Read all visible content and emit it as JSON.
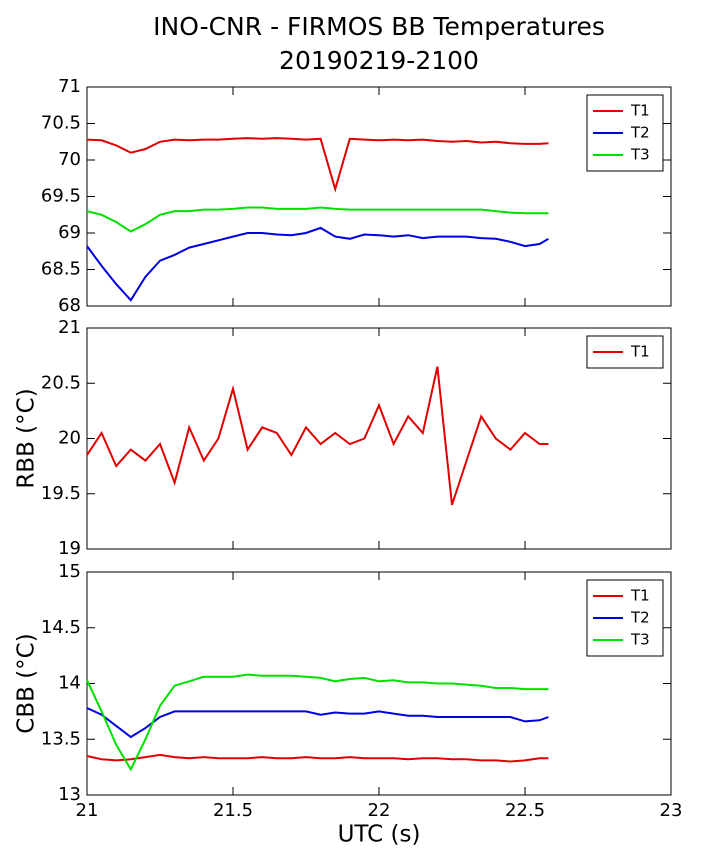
{
  "chart_data": [
    {
      "type": "line",
      "title": "INO-CNR - FIRMOS BB Temperatures",
      "subtitle": "20190219-2100",
      "x": [
        21.0,
        21.05,
        21.1,
        21.15,
        21.2,
        21.25,
        21.3,
        21.35,
        21.4,
        21.45,
        21.5,
        21.55,
        21.6,
        21.65,
        21.7,
        21.75,
        21.8,
        21.85,
        21.9,
        21.95,
        22.0,
        22.05,
        22.1,
        22.15,
        22.2,
        22.25,
        22.3,
        22.35,
        22.4,
        22.45,
        22.5,
        22.55,
        22.58
      ],
      "series": [
        {
          "name": "T1",
          "color": "#e00000",
          "values": [
            70.28,
            70.27,
            70.2,
            70.1,
            70.15,
            70.25,
            70.28,
            70.27,
            70.28,
            70.28,
            70.29,
            70.3,
            70.29,
            70.3,
            70.29,
            70.28,
            70.29,
            69.6,
            70.29,
            70.28,
            70.27,
            70.28,
            70.27,
            70.28,
            70.26,
            70.25,
            70.26,
            70.24,
            70.25,
            70.23,
            70.22,
            70.22,
            70.23
          ]
        },
        {
          "name": "T2",
          "color": "#0000e0",
          "values": [
            68.82,
            68.55,
            68.3,
            68.08,
            68.4,
            68.62,
            68.7,
            68.8,
            68.85,
            68.9,
            68.95,
            69.0,
            69.0,
            68.98,
            68.97,
            69.0,
            69.07,
            68.95,
            68.92,
            68.98,
            68.97,
            68.95,
            68.97,
            68.93,
            68.95,
            68.95,
            68.95,
            68.93,
            68.92,
            68.88,
            68.82,
            68.85,
            68.92
          ]
        },
        {
          "name": "T3",
          "color": "#00e000",
          "values": [
            69.3,
            69.25,
            69.15,
            69.02,
            69.12,
            69.25,
            69.3,
            69.3,
            69.32,
            69.32,
            69.33,
            69.35,
            69.35,
            69.33,
            69.33,
            69.33,
            69.35,
            69.33,
            69.32,
            69.32,
            69.32,
            69.32,
            69.32,
            69.32,
            69.32,
            69.32,
            69.32,
            69.32,
            69.3,
            69.28,
            69.27,
            69.27,
            69.27
          ]
        }
      ],
      "xlim": [
        21,
        23
      ],
      "xticks": [
        21,
        21.5,
        22,
        22.5,
        23
      ],
      "ylim": [
        68,
        71
      ],
      "yticks": [
        68,
        68.5,
        69,
        69.5,
        70,
        70.5,
        71
      ],
      "legend": "upper right"
    },
    {
      "type": "line",
      "ylabel": "RBB (°C)",
      "x": [
        21.0,
        21.05,
        21.1,
        21.15,
        21.2,
        21.25,
        21.3,
        21.35,
        21.4,
        21.45,
        21.5,
        21.55,
        21.6,
        21.65,
        21.7,
        21.75,
        21.8,
        21.85,
        21.9,
        21.95,
        22.0,
        22.05,
        22.1,
        22.15,
        22.2,
        22.25,
        22.3,
        22.35,
        22.4,
        22.45,
        22.5,
        22.55,
        22.58
      ],
      "series": [
        {
          "name": "T1",
          "color": "#e00000",
          "values": [
            19.85,
            20.05,
            19.75,
            19.9,
            19.8,
            19.95,
            19.6,
            20.1,
            19.8,
            20.0,
            20.45,
            19.9,
            20.1,
            20.05,
            19.85,
            20.1,
            19.95,
            20.05,
            19.95,
            20.0,
            20.3,
            19.95,
            20.2,
            20.05,
            20.65,
            19.4,
            19.8,
            20.2,
            20.0,
            19.9,
            20.05,
            19.95,
            19.95
          ]
        }
      ],
      "xlim": [
        21,
        23
      ],
      "xticks": [
        21,
        21.5,
        22,
        22.5,
        23
      ],
      "ylim": [
        19,
        21
      ],
      "yticks": [
        19,
        19.5,
        20,
        20.5,
        21
      ],
      "legend": "upper right"
    },
    {
      "type": "line",
      "ylabel": "CBB (°C)",
      "xlabel": "UTC (s)",
      "x": [
        21.0,
        21.05,
        21.1,
        21.15,
        21.2,
        21.25,
        21.3,
        21.35,
        21.4,
        21.45,
        21.5,
        21.55,
        21.6,
        21.65,
        21.7,
        21.75,
        21.8,
        21.85,
        21.9,
        21.95,
        22.0,
        22.05,
        22.1,
        22.15,
        22.2,
        22.25,
        22.3,
        22.35,
        22.4,
        22.45,
        22.5,
        22.55,
        22.58
      ],
      "series": [
        {
          "name": "T1",
          "color": "#e00000",
          "values": [
            13.35,
            13.32,
            13.31,
            13.32,
            13.34,
            13.36,
            13.34,
            13.33,
            13.34,
            13.33,
            13.33,
            13.33,
            13.34,
            13.33,
            13.33,
            13.34,
            13.33,
            13.33,
            13.34,
            13.33,
            13.33,
            13.33,
            13.32,
            13.33,
            13.33,
            13.32,
            13.32,
            13.31,
            13.31,
            13.3,
            13.31,
            13.33,
            13.33
          ]
        },
        {
          "name": "T2",
          "color": "#0000e0",
          "values": [
            13.78,
            13.72,
            13.62,
            13.52,
            13.6,
            13.7,
            13.75,
            13.75,
            13.75,
            13.75,
            13.75,
            13.75,
            13.75,
            13.75,
            13.75,
            13.75,
            13.72,
            13.74,
            13.73,
            13.73,
            13.75,
            13.73,
            13.71,
            13.71,
            13.7,
            13.7,
            13.7,
            13.7,
            13.7,
            13.7,
            13.66,
            13.67,
            13.7
          ]
        },
        {
          "name": "T3",
          "color": "#00e000",
          "values": [
            14.03,
            13.75,
            13.45,
            13.23,
            13.5,
            13.8,
            13.98,
            14.02,
            14.06,
            14.06,
            14.06,
            14.08,
            14.07,
            14.07,
            14.07,
            14.06,
            14.05,
            14.02,
            14.04,
            14.05,
            14.02,
            14.03,
            14.01,
            14.01,
            14.0,
            14.0,
            13.99,
            13.98,
            13.96,
            13.96,
            13.95,
            13.95,
            13.95
          ]
        }
      ],
      "xlim": [
        21,
        23
      ],
      "xticks": [
        21,
        21.5,
        22,
        22.5,
        23
      ],
      "ylim": [
        13,
        15
      ],
      "yticks": [
        13,
        13.5,
        14,
        14.5,
        15
      ],
      "legend": "upper right"
    }
  ]
}
